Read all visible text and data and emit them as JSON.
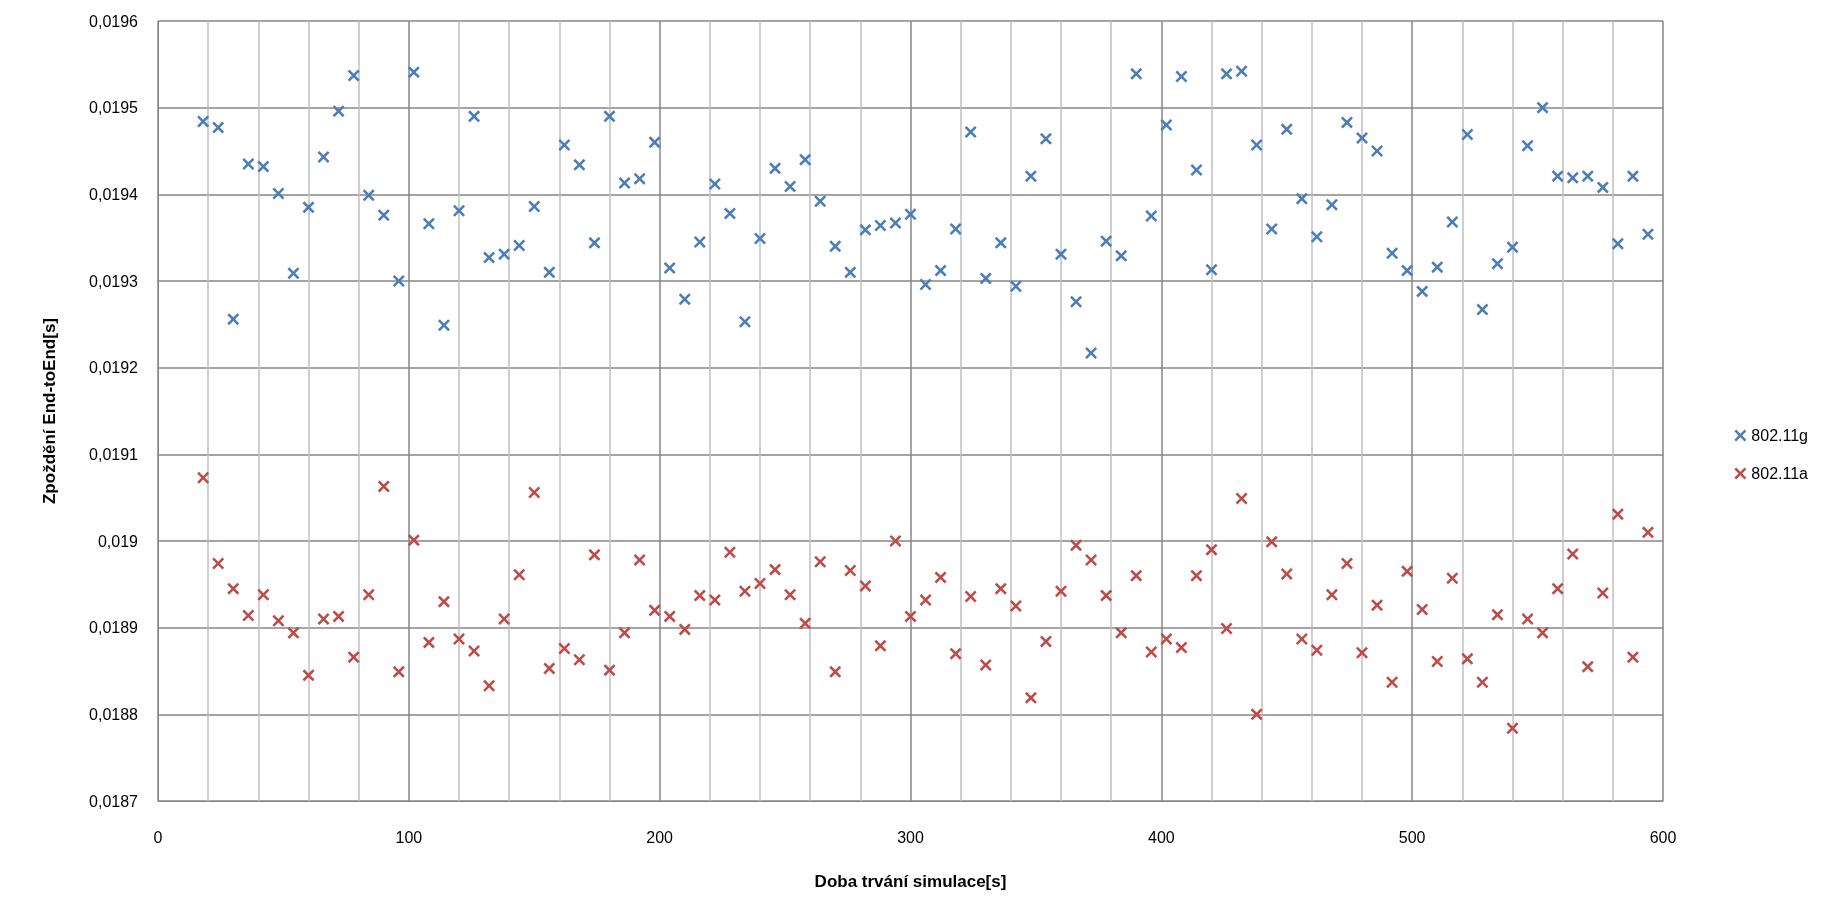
{
  "chart_data": {
    "type": "scatter",
    "xlabel": "Doba trvání simulace[s]",
    "ylabel": "Zpoždění End-toEnd[s]",
    "x": [
      18,
      24,
      30,
      36,
      42,
      48,
      54,
      60,
      66,
      72,
      78,
      84,
      90,
      96,
      102,
      108,
      114,
      120,
      126,
      132,
      138,
      144,
      150,
      156,
      162,
      168,
      174,
      180,
      186,
      192,
      198,
      204,
      210,
      216,
      222,
      228,
      234,
      240,
      246,
      252,
      258,
      264,
      270,
      276,
      282,
      288,
      294,
      300,
      306,
      312,
      318,
      324,
      330,
      336,
      342,
      348,
      354,
      360,
      366,
      372,
      378,
      384,
      390,
      396,
      402,
      408,
      414,
      420,
      426,
      432,
      438,
      444,
      450,
      456,
      462,
      468,
      474,
      480,
      486,
      492,
      498,
      504,
      510,
      516,
      522,
      528,
      534,
      540,
      546,
      552,
      558,
      564,
      570,
      576,
      582,
      588,
      594
    ],
    "series": [
      {
        "name": "802.11g",
        "color": "#4a7ebb",
        "values": [
          0.019484,
          0.019477,
          0.019256,
          0.019435,
          0.019432,
          0.019401,
          0.019309,
          0.019385,
          0.019443,
          0.019496,
          0.019537,
          0.019399,
          0.019376,
          0.0193,
          0.019541,
          0.019366,
          0.019249,
          0.019381,
          0.01949,
          0.019327,
          0.019331,
          0.019341,
          0.019386,
          0.01931,
          0.019457,
          0.019434,
          0.019344,
          0.01949,
          0.019413,
          0.019418,
          0.01946,
          0.019315,
          0.019279,
          0.019345,
          0.019412,
          0.019378,
          0.019253,
          0.019349,
          0.01943,
          0.019409,
          0.01944,
          0.019392,
          0.01934,
          0.01931,
          0.019359,
          0.019364,
          0.019367,
          0.019377,
          0.019296,
          0.019312,
          0.01936,
          0.019472,
          0.019303,
          0.019344,
          0.019294,
          0.019421,
          0.019464,
          0.019331,
          0.019276,
          0.019217,
          0.019346,
          0.019329,
          0.019539,
          0.019375,
          0.01948,
          0.019536,
          0.019428,
          0.019313,
          0.019539,
          0.019542,
          0.019457,
          0.01936,
          0.019475,
          0.019395,
          0.019351,
          0.019388,
          0.019483,
          0.019465,
          0.01945,
          0.019332,
          0.019312,
          0.019288,
          0.019316,
          0.019368,
          0.019469,
          0.019267,
          0.01932,
          0.019339,
          0.019456,
          0.0195,
          0.019421,
          0.019419,
          0.019421,
          0.019408,
          0.019343,
          0.019421,
          0.019354
        ]
      },
      {
        "name": "802.11a",
        "color": "#be4b48",
        "values": [
          0.019073,
          0.018974,
          0.018945,
          0.018914,
          0.018938,
          0.018908,
          0.018894,
          0.018845,
          0.01891,
          0.018913,
          0.018866,
          0.018938,
          0.019063,
          0.018849,
          0.019001,
          0.018883,
          0.01893,
          0.018887,
          0.018873,
          0.018833,
          0.01891,
          0.018961,
          0.019056,
          0.018853,
          0.018876,
          0.018863,
          0.018984,
          0.018851,
          0.018894,
          0.018978,
          0.01892,
          0.018913,
          0.018898,
          0.018937,
          0.018932,
          0.018987,
          0.018942,
          0.018951,
          0.018967,
          0.018938,
          0.018905,
          0.018976,
          0.018849,
          0.018966,
          0.018948,
          0.018879,
          0.019,
          0.018913,
          0.018932,
          0.018958,
          0.01887,
          0.018936,
          0.018857,
          0.018945,
          0.018925,
          0.018819,
          0.018884,
          0.018942,
          0.018995,
          0.018978,
          0.018937,
          0.018894,
          0.01896,
          0.018872,
          0.018887,
          0.018877,
          0.01896,
          0.01899,
          0.018899,
          0.019049,
          0.0188,
          0.018999,
          0.018962,
          0.018887,
          0.018874,
          0.018938,
          0.018974,
          0.018871,
          0.018926,
          0.018837,
          0.018965,
          0.018921,
          0.018861,
          0.018957,
          0.018864,
          0.018837,
          0.018915,
          0.018784,
          0.01891,
          0.018894,
          0.018945,
          0.018985,
          0.018855,
          0.01894,
          0.019031,
          0.018866,
          0.01901
        ]
      }
    ],
    "xlim": [
      0,
      600
    ],
    "xticks": [
      0,
      {
        "value": 20,
        "label": null
      },
      {
        "value": 40,
        "label": null
      },
      {
        "value": 60,
        "label": null
      },
      {
        "value": 80,
        "label": null
      },
      100,
      {
        "value": 120,
        "label": null
      },
      {
        "value": 140,
        "label": null
      },
      {
        "value": 160,
        "label": null
      },
      {
        "value": 180,
        "label": null
      },
      200,
      {
        "value": 220,
        "label": null
      },
      {
        "value": 240,
        "label": null
      },
      {
        "value": 260,
        "label": null
      },
      {
        "value": 280,
        "label": null
      },
      300,
      {
        "value": 320,
        "label": null
      },
      {
        "value": 340,
        "label": null
      },
      {
        "value": 360,
        "label": null
      },
      {
        "value": 380,
        "label": null
      },
      400,
      {
        "value": 420,
        "label": null
      },
      {
        "value": 440,
        "label": null
      },
      {
        "value": 460,
        "label": null
      },
      {
        "value": 480,
        "label": null
      },
      500,
      {
        "value": 520,
        "label": null
      },
      {
        "value": 540,
        "label": null
      },
      {
        "value": 560,
        "label": null
      },
      {
        "value": 580,
        "label": null
      },
      600
    ],
    "ylim": [
      0.0187,
      0.0196
    ],
    "yticks": [
      {
        "value": 0.0187,
        "label": "0,0187"
      },
      {
        "value": 0.0188,
        "label": "0,0188"
      },
      {
        "value": 0.0189,
        "label": "0,0189"
      },
      {
        "value": 0.019,
        "label": "0,019"
      },
      {
        "value": 0.0191,
        "label": "0,0191"
      },
      {
        "value": 0.0192,
        "label": "0,0192"
      },
      {
        "value": 0.0193,
        "label": "0,0193"
      },
      {
        "value": 0.0194,
        "label": "0,0194"
      },
      {
        "value": 0.0195,
        "label": "0,0195"
      },
      {
        "value": 0.0196,
        "label": "0,0196"
      }
    ],
    "grid": true,
    "legend": "right",
    "marker": "cross"
  }
}
